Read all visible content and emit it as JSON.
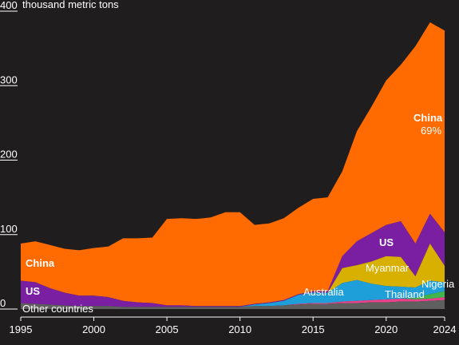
{
  "chart_data": {
    "type": "area",
    "stacked": true,
    "y_unit_label": "thousand metric tons",
    "ylim": [
      0,
      400
    ],
    "y_ticks": [
      {
        "value": 0,
        "label": "0"
      },
      {
        "value": 100,
        "label": "100"
      },
      {
        "value": 200,
        "label": "200"
      },
      {
        "value": 300,
        "label": "300"
      },
      {
        "value": 400,
        "label": "400"
      }
    ],
    "xlim": [
      1995,
      2024
    ],
    "x_ticks": [
      {
        "value": 1995,
        "label": "1995"
      },
      {
        "value": 2000,
        "label": "2000"
      },
      {
        "value": 2005,
        "label": "2005"
      },
      {
        "value": 2010,
        "label": "2010"
      },
      {
        "value": 2015,
        "label": "2015"
      },
      {
        "value": 2020,
        "label": "2020"
      },
      {
        "value": 2024,
        "label": "2024"
      }
    ],
    "x": [
      1995,
      1996,
      1997,
      1998,
      1999,
      2000,
      2001,
      2002,
      2003,
      2004,
      2005,
      2006,
      2007,
      2008,
      2009,
      2010,
      2011,
      2012,
      2013,
      2014,
      2015,
      2016,
      2017,
      2018,
      2019,
      2020,
      2021,
      2022,
      2023,
      2024
    ],
    "series": [
      {
        "name": "Other countries",
        "color": "#5f5f5f",
        "values": [
          8,
          7,
          6,
          5,
          4,
          4,
          4,
          3,
          3,
          3,
          3,
          3,
          3,
          3,
          3,
          3,
          4,
          4,
          5,
          6,
          7,
          7,
          8,
          8,
          9,
          9,
          10,
          10,
          11,
          12
        ]
      },
      {
        "name": "Thailand",
        "color": "#e8438a",
        "values": [
          0,
          0,
          0,
          0,
          0,
          0,
          0,
          0,
          0,
          0,
          0,
          0,
          0,
          0,
          0,
          0,
          0,
          0,
          0,
          1,
          1,
          1,
          2,
          3,
          3,
          4,
          4,
          3,
          3,
          4
        ]
      },
      {
        "name": "Nigeria",
        "color": "#3fb54b",
        "values": [
          0,
          0,
          0,
          0,
          0,
          0,
          0,
          0,
          0,
          0,
          0,
          0,
          0,
          0,
          0,
          0,
          0,
          0,
          0,
          0,
          0,
          0,
          0,
          0,
          0,
          0,
          0,
          2,
          6,
          8
        ]
      },
      {
        "name": "Australia",
        "color": "#1e9fd9",
        "values": [
          0,
          0,
          0,
          0,
          0,
          0,
          0,
          0,
          0,
          0,
          0,
          0,
          0,
          0,
          0,
          0,
          2,
          4,
          6,
          12,
          14,
          14,
          25,
          28,
          22,
          18,
          16,
          14,
          18,
          12
        ]
      },
      {
        "name": "Myanmar",
        "color": "#d8b100",
        "values": [
          0,
          0,
          0,
          0,
          0,
          0,
          0,
          0,
          0,
          0,
          0,
          0,
          0,
          0,
          0,
          0,
          0,
          0,
          0,
          0,
          0,
          0,
          20,
          20,
          30,
          40,
          40,
          15,
          50,
          22
        ]
      },
      {
        "name": "US",
        "color": "#7a1fa2",
        "values": [
          30,
          29,
          22,
          17,
          14,
          14,
          12,
          8,
          6,
          5,
          2,
          2,
          1,
          1,
          1,
          1,
          1,
          1,
          1,
          1,
          2,
          2,
          16,
          32,
          38,
          42,
          48,
          44,
          40,
          45
        ]
      },
      {
        "name": "China",
        "color": "#ff6b00",
        "share_label": "69%",
        "values": [
          50,
          55,
          58,
          59,
          61,
          64,
          68,
          84,
          86,
          88,
          116,
          117,
          117,
          119,
          126,
          126,
          106,
          106,
          110,
          116,
          124,
          126,
          114,
          148,
          170,
          194,
          210,
          265,
          257,
          271
        ]
      }
    ]
  },
  "labels": {
    "unit": "thousand metric tons",
    "china_upper": "China",
    "china_share": "69%",
    "china_lower": "China",
    "us_upper": "US",
    "us_lower": "US",
    "myanmar": "Myanmar",
    "nigeria": "Nigeria",
    "australia": "Australia",
    "thailand": "Thailand",
    "other": "Other countries"
  },
  "colors": {
    "background": "#1f1d1d",
    "text": "#ffffff"
  }
}
